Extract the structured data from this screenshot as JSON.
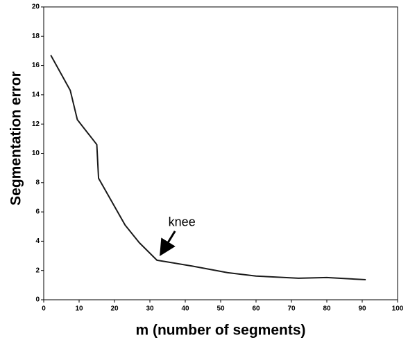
{
  "chart_data": {
    "type": "line",
    "x_label": "m (number of segments)",
    "y_label": "Segmentation error",
    "annotation": "knee",
    "x": [
      2,
      7.5,
      9.5,
      15,
      15.5,
      23,
      27,
      32,
      42,
      52,
      60,
      72,
      80,
      91
    ],
    "values": [
      16.7,
      14.3,
      12.3,
      10.6,
      8.3,
      5.1,
      3.9,
      2.7,
      2.3,
      1.85,
      1.62,
      1.47,
      1.52,
      1.37
    ],
    "color": "#1a1a1a",
    "xlim": [
      0,
      100
    ],
    "xticks": [
      0,
      10,
      20,
      30,
      40,
      50,
      60,
      70,
      80,
      90,
      100
    ],
    "ylim": [
      0,
      20
    ],
    "yticks": [
      0,
      2,
      4,
      6,
      8,
      10,
      12,
      14,
      16,
      18,
      20
    ]
  }
}
